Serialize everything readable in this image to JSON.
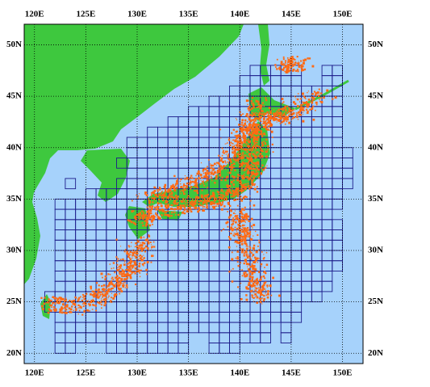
{
  "map": {
    "lon_range": [
      119,
      152
    ],
    "lat_range": [
      19,
      52
    ],
    "lon_ticks": [
      {
        "value": 120,
        "label": "120E"
      },
      {
        "value": 125,
        "label": "125E"
      },
      {
        "value": 130,
        "label": "130E"
      },
      {
        "value": 135,
        "label": "135E"
      },
      {
        "value": 140,
        "label": "140E"
      },
      {
        "value": 145,
        "label": "145E"
      },
      {
        "value": 150,
        "label": "150E"
      }
    ],
    "lat_ticks": [
      {
        "value": 20,
        "label": "20N"
      },
      {
        "value": 25,
        "label": "25N"
      },
      {
        "value": 30,
        "label": "30N"
      },
      {
        "value": 35,
        "label": "35N"
      },
      {
        "value": 40,
        "label": "40N"
      },
      {
        "value": 45,
        "label": "45N"
      },
      {
        "value": 50,
        "label": "50N"
      }
    ]
  }
}
